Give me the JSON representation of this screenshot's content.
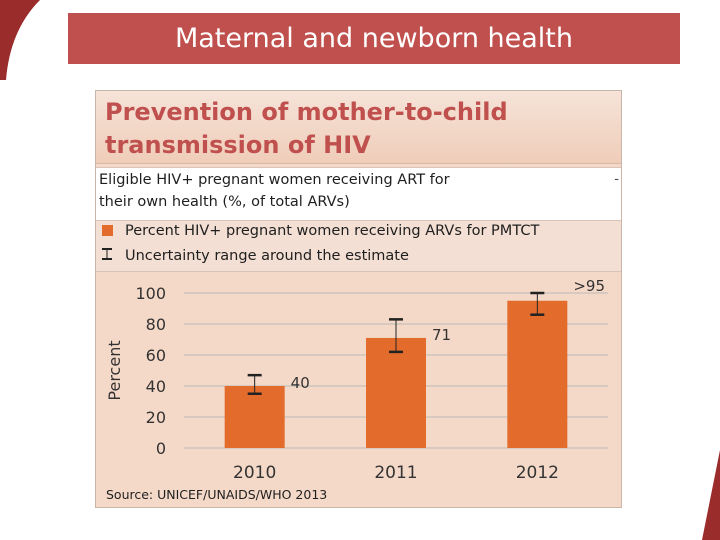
{
  "slide": {
    "title": "Maternal and newborn health"
  },
  "figure": {
    "heading_line1": "Prevention of mother-to-child",
    "heading_line2": "transmission of HIV",
    "subheading_line1": "Eligible HIV+ pregnant women receiving ART for",
    "subheading_line2": "their own health (%, of total ARVs)",
    "subheading_marker": "-",
    "source": "Source: UNICEF/UNAIDS/WHO 2013"
  },
  "colors": {
    "title_bar": "#c0504d",
    "bar": "#e36c2c",
    "panel": "#f5d9c8"
  },
  "chart_data": {
    "type": "bar",
    "categories": [
      "2010",
      "2011",
      "2012"
    ],
    "series": [
      {
        "name": "Percent HIV+ pregnant women receiving ARVs for PMTCT",
        "values": [
          40,
          71,
          95
        ],
        "data_labels": [
          "40",
          "71",
          ">95"
        ]
      }
    ],
    "uncertainty": {
      "name": "Uncertainty range around the estimate",
      "low": [
        35,
        62,
        86
      ],
      "high": [
        47,
        83,
        100
      ]
    },
    "ylabel": "Percent",
    "xlabel": "",
    "ylim": [
      0,
      100
    ],
    "yticks": [
      0,
      20,
      40,
      60,
      80,
      100
    ],
    "grid": true,
    "legend": "top"
  }
}
